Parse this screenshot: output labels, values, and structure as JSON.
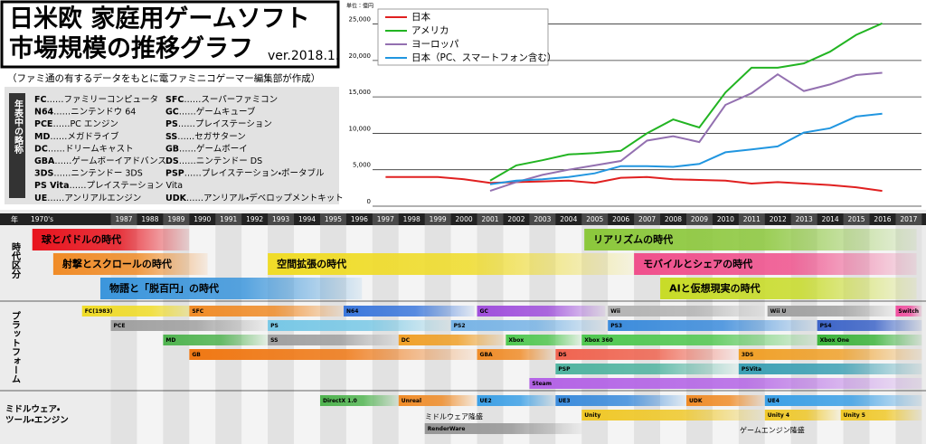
{
  "header": {
    "title_lines": [
      "日米欧 家庭用ゲームソフト",
      "市場規模の推移グラフ"
    ],
    "version": "ver.2018.1.",
    "subtitle": "（ファミ通の有するデータをもとに電ファミニコゲーマー編集部が作成）"
  },
  "abbreviations": {
    "heading": "年表中の略称",
    "rows": [
      [
        {
          "abbr": "FC",
          "name": "……ファミリーコンピュータ"
        },
        {
          "abbr": "SFC",
          "name": "……スーパーファミコン"
        }
      ],
      [
        {
          "abbr": "N64",
          "name": "……ニンテンドウ 64"
        },
        {
          "abbr": "GC",
          "name": "……ゲームキューブ"
        }
      ],
      [
        {
          "abbr": "PCE",
          "name": "……PC エンジン"
        },
        {
          "abbr": "PS",
          "name": "……プレイステーション"
        }
      ],
      [
        {
          "abbr": "MD",
          "name": "……メガドライブ"
        },
        {
          "abbr": "SS",
          "name": "……セガサターン"
        }
      ],
      [
        {
          "abbr": "DC",
          "name": "……ドリームキャスト"
        },
        {
          "abbr": "GB",
          "name": "……ゲームボーイ"
        }
      ],
      [
        {
          "abbr": "GBA",
          "name": "……ゲームボーイアドバンス"
        },
        {
          "abbr": "DS",
          "name": "……ニンテンドー DS"
        }
      ],
      [
        {
          "abbr": "3DS",
          "name": "……ニンテンドー 3DS"
        },
        {
          "abbr": "PSP",
          "name": "……プレイステーション・ポータブル"
        }
      ],
      [
        {
          "abbr": "PS Vita",
          "name": "……プレイステーション Vita"
        }
      ],
      [
        {
          "abbr": "UE",
          "name": "……アンリアルエンジン"
        },
        {
          "abbr": "UDK",
          "name": "……アンリアル・デベロップメントキット"
        }
      ]
    ]
  },
  "chart_data": {
    "type": "line",
    "unit": "単位：億円",
    "x": [
      1997,
      1998,
      1999,
      2000,
      2001,
      2002,
      2003,
      2004,
      2005,
      2006,
      2007,
      2008,
      2009,
      2010,
      2011,
      2012,
      2013,
      2014,
      2015,
      2016
    ],
    "xlim": [
      1995.5,
      2017.5
    ],
    "ylim": [
      0,
      27800
    ],
    "yticks": [
      0,
      {
        "value": 5000,
        "label": "5,000"
      },
      {
        "value": 10000,
        "label": "10,000"
      },
      {
        "value": 15000,
        "label": "15,000"
      },
      {
        "value": 20000,
        "label": "20,000"
      },
      {
        "value": 25000,
        "label": "25,000"
      }
    ],
    "grid": true,
    "legend": "upper-left",
    "series": [
      {
        "name": "日本",
        "color": "#e02020",
        "values": [
          4000,
          4000,
          4000,
          3700,
          3200,
          3300,
          3400,
          3500,
          3200,
          3900,
          4000,
          3700,
          3600,
          3500,
          3100,
          3300,
          3100,
          2900,
          2600,
          2100
        ]
      },
      {
        "name": "アメリカ",
        "color": "#22b422",
        "values": [
          null,
          null,
          null,
          null,
          3500,
          5600,
          6300,
          7100,
          7300,
          7600,
          10000,
          11900,
          10800,
          15600,
          19000,
          19000,
          19600,
          21200,
          23500,
          25100
        ]
      },
      {
        "name": "ヨーロッパ",
        "color": "#9370b0",
        "values": [
          null,
          null,
          null,
          null,
          2100,
          3300,
          4300,
          5000,
          5600,
          6200,
          9000,
          9600,
          8800,
          13900,
          15500,
          18100,
          15800,
          16700,
          18000,
          18300
        ]
      },
      {
        "name": "日本（PC、スマートフォン含む）",
        "color": "#2196e0",
        "values": [
          null,
          null,
          null,
          null,
          3000,
          3500,
          3700,
          4000,
          4500,
          5500,
          5500,
          5400,
          5800,
          7400,
          7800,
          8200,
          10100,
          10700,
          12300,
          12700
        ]
      }
    ]
  },
  "timeline": {
    "year_label": "年",
    "years": [
      "1970's",
      "1987",
      "1988",
      "1989",
      "1990",
      "1991",
      "1992",
      "1993",
      "1994",
      "1995",
      "1996",
      "1997",
      "1998",
      "1999",
      "2000",
      "2001",
      "2002",
      "2003",
      "2004",
      "2005",
      "2006",
      "2007",
      "2008",
      "2009",
      "2010",
      "2011",
      "2012",
      "2013",
      "2014",
      "2015",
      "2016",
      "2017"
    ],
    "eras": {
      "label": "時代区分",
      "rows": [
        [
          {
            "label": "球とパドルの時代",
            "start": 1983.5,
            "end": 1989.5,
            "color": "#e8141e"
          },
          {
            "label": "リアリズムの時代",
            "start": 2004.6,
            "end": 2017.3,
            "color": "#8cc83c"
          }
        ],
        [
          {
            "label": "射撃とスクロールの時代",
            "start": 1984.3,
            "end": 1990.2,
            "color": "#f08c28"
          },
          {
            "label": "空間拡張の時代",
            "start": 1992.5,
            "end": 2006.5,
            "color": "#f0dc28"
          },
          {
            "label": "モバイルとシェアの時代",
            "start": 2006.5,
            "end": 2017.3,
            "color": "#f0508c"
          }
        ],
        [
          {
            "label": "物語と「脱百円」の時代",
            "start": 1986.1,
            "end": 1996.1,
            "color": "#3c96dc"
          },
          {
            "label": "AIと仮想現実の時代",
            "start": 2007.5,
            "end": 2017.3,
            "color": "#c8dc28"
          }
        ]
      ]
    },
    "platforms": {
      "label": "プラットフォーム",
      "rows": [
        [
          {
            "label": "FC(1983)",
            "start": 1985.4,
            "end": 1990.2,
            "color": "#f0dc28"
          },
          {
            "label": "SFC",
            "start": 1989.5,
            "end": 1995.4,
            "color": "#f08c28"
          },
          {
            "label": "N64",
            "start": 1995.4,
            "end": 2000.4,
            "color": "#3c78dc"
          },
          {
            "label": "GC",
            "start": 2000.5,
            "end": 2005.4,
            "color": "#a050dc"
          },
          {
            "label": "Wii",
            "start": 2005.5,
            "end": 2011.5,
            "color": "#b4b4b4"
          },
          {
            "label": "Wii U",
            "start": 2011.6,
            "end": 2016.5,
            "color": "#a0a0a0"
          },
          {
            "label": "Switch",
            "start": 2016.5,
            "end": 2017.5,
            "color": "#f050a0"
          }
        ],
        [
          {
            "label": "PCE",
            "start": 1986.5,
            "end": 1992.5,
            "color": "#a0a0a0"
          },
          {
            "label": "PS",
            "start": 1992.5,
            "end": 1999.5,
            "color": "#78c8e6"
          },
          {
            "label": "PS2",
            "start": 1999.5,
            "end": 2005.4,
            "color": "#78b4e6"
          },
          {
            "label": "PS3",
            "start": 2005.5,
            "end": 2013.5,
            "color": "#3c8cdc"
          },
          {
            "label": "PS4",
            "start": 2013.5,
            "end": 2017.5,
            "color": "#3c64c8"
          }
        ],
        [
          {
            "label": "MD",
            "start": 1988.5,
            "end": 1992.5,
            "color": "#50b450"
          },
          {
            "label": "SS",
            "start": 1992.5,
            "end": 1997.5,
            "color": "#a0a0a0"
          },
          {
            "label": "DC",
            "start": 1997.5,
            "end": 2001.6,
            "color": "#f0a028"
          },
          {
            "label": "Xbox",
            "start": 2001.6,
            "end": 2004.5,
            "color": "#50c850"
          },
          {
            "label": "Xbox 360",
            "start": 2004.5,
            "end": 2013.5,
            "color": "#50c850"
          },
          {
            "label": "Xbox One",
            "start": 2013.5,
            "end": 2017.5,
            "color": "#3cb43c"
          }
        ],
        [
          {
            "label": "GB",
            "start": 1989.5,
            "end": 2000.5,
            "color": "#f07814"
          },
          {
            "label": "GBA",
            "start": 2000.5,
            "end": 2003.5,
            "color": "#f08c28"
          },
          {
            "label": "DS",
            "start": 2003.5,
            "end": 2010.5,
            "color": "#f06450"
          },
          {
            "label": "3DS",
            "start": 2010.5,
            "end": 2017.5,
            "color": "#f0a028"
          }
        ],
        [
          {
            "label": "PSP",
            "start": 2003.5,
            "end": 2010.5,
            "color": "#50b4a0"
          },
          {
            "label": "PSVita",
            "start": 2010.5,
            "end": 2017.5,
            "color": "#3ca0b4"
          }
        ],
        [
          {
            "label": "Steam",
            "start": 2002.5,
            "end": 2017.5,
            "color": "#b464e6"
          }
        ]
      ]
    },
    "middleware": {
      "label": [
        "ミドルウェア・",
        "ツール・エンジン"
      ],
      "notes": [
        "ミドルウェア隆盛",
        "ゲームエンジン隆盛"
      ],
      "rows": [
        [
          {
            "label": "DirectX 1.0",
            "start": 1994.5,
            "end": 1997.5,
            "color": "#50b450"
          },
          {
            "label": "Unreal",
            "start": 1997.5,
            "end": 2000.5,
            "color": "#f08c28"
          },
          {
            "label": "UE2",
            "start": 2000.5,
            "end": 2003.5,
            "color": "#3ca0e6"
          },
          {
            "label": "UE3",
            "start": 2003.5,
            "end": 2008.5,
            "color": "#3c8cdc"
          },
          {
            "label": "UDK",
            "start": 2008.5,
            "end": 2011.5,
            "color": "#f08c28"
          },
          {
            "label": "UE4",
            "start": 2011.5,
            "end": 2017.5,
            "color": "#3ca0e6"
          }
        ],
        [
          {
            "label": "Unity",
            "start": 2004.5,
            "end": 2011.5,
            "color": "#f0c828"
          },
          {
            "label": "Unity 4",
            "start": 2011.5,
            "end": 2014.4,
            "color": "#f0c828"
          },
          {
            "label": "Unity 5",
            "start": 2014.4,
            "end": 2017.5,
            "color": "#f0c828"
          }
        ],
        [
          {
            "label": "RenderWare",
            "start": 1998.5,
            "end": 2004.5,
            "color": "#969696"
          }
        ]
      ]
    }
  }
}
